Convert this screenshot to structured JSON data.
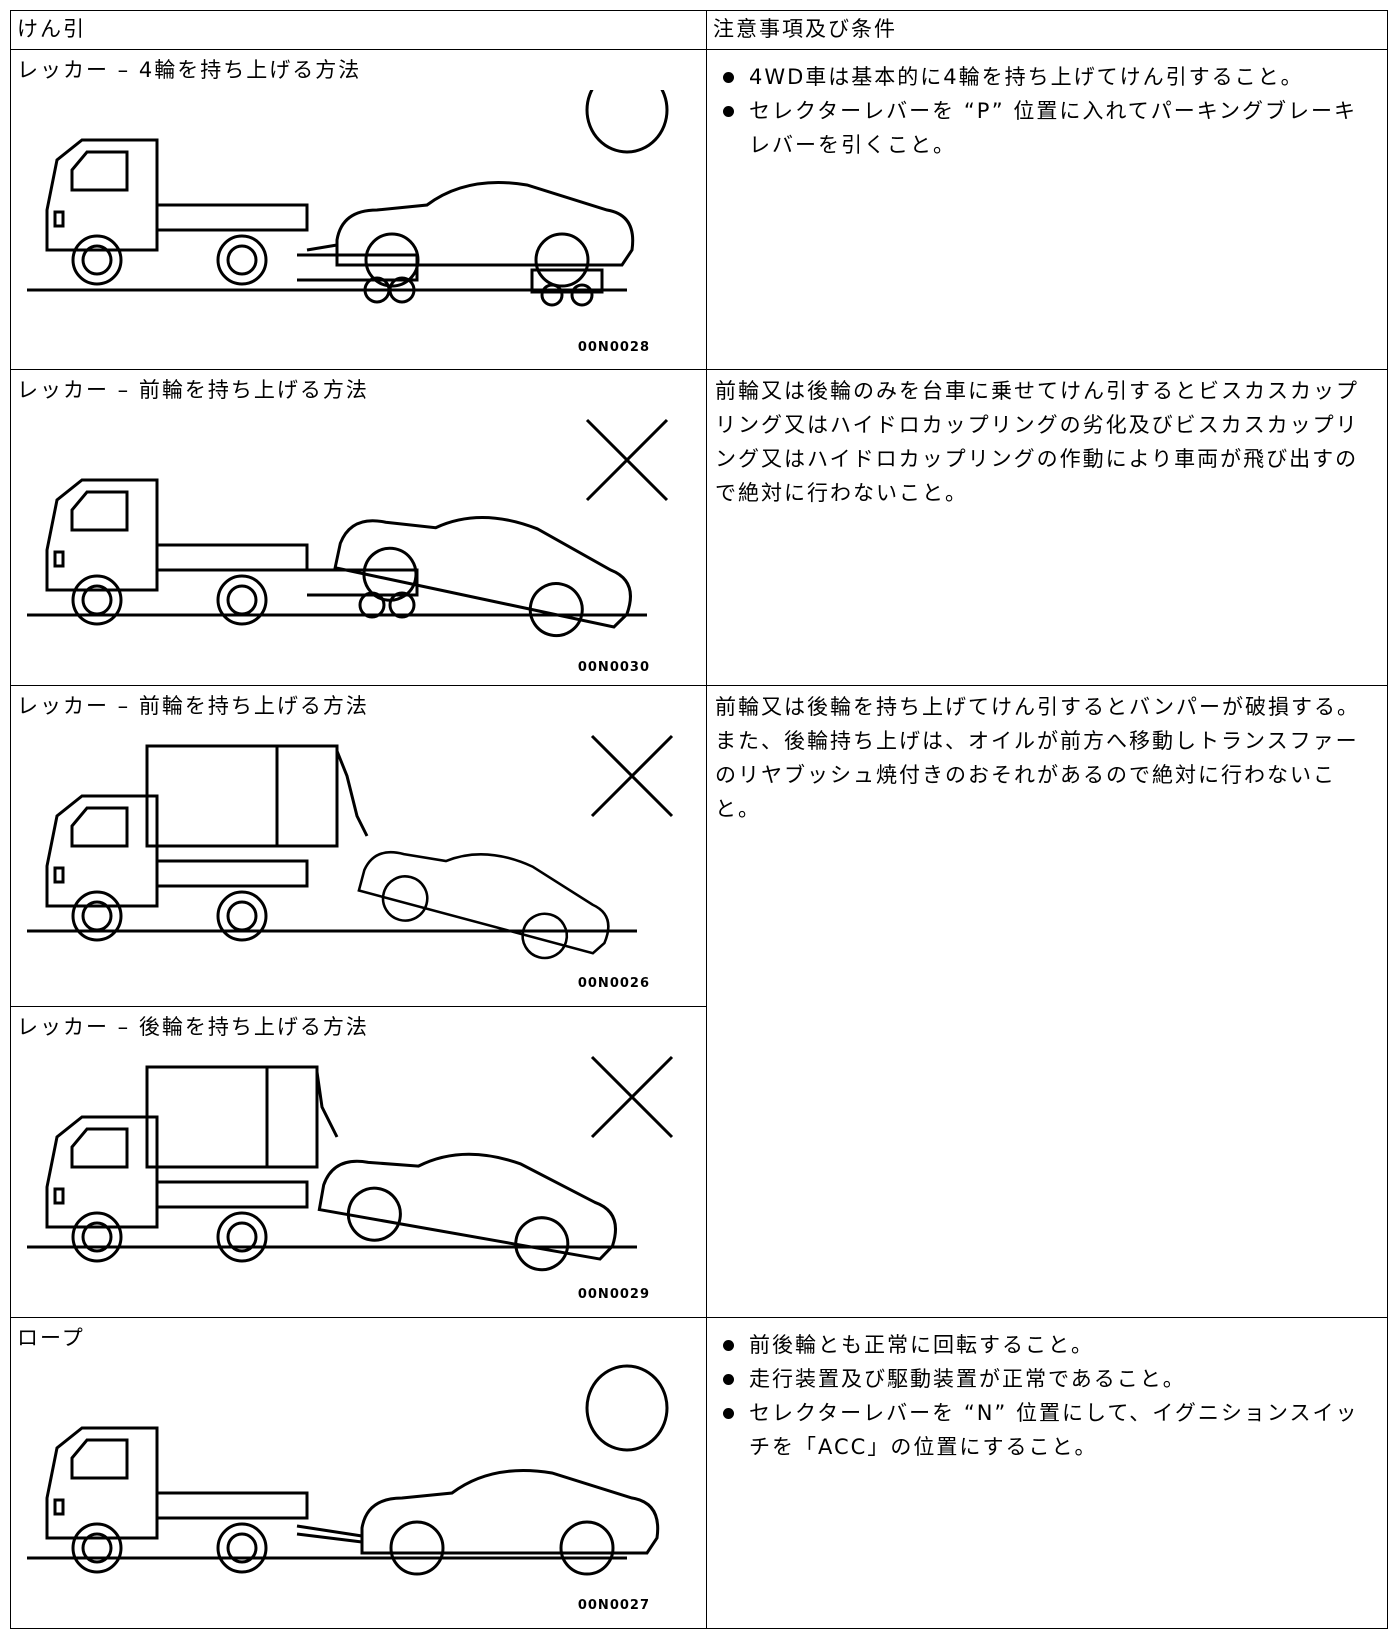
{
  "header": {
    "col1": "けん引",
    "col2": "注意事項及び条件"
  },
  "rows": [
    {
      "method": "レッカー – 4輪を持ち上げる方法",
      "figure": "00N0028",
      "bullets": [
        "4WD車は基本的に4輪を持ち上げてけん引すること。",
        "セレクターレバーを “P” 位置に入れてパーキングブレーキレバーを引くこと。"
      ]
    },
    {
      "method": "レッカー – 前輪を持ち上げる方法",
      "figure": "00N0030",
      "paragraphs": [
        "前輪又は後輪のみを台車に乗せてけん引するとビスカスカップリング又はハイドロカップリングの劣化及びビスカスカップリング又はハイドロカップリングの作動により車両が飛び出すので絶対に行わないこと。"
      ]
    },
    {
      "method": "レッカー – 前輪を持ち上げる方法",
      "figure": "00N0026",
      "paragraphs": [
        "前輪又は後輪を持ち上げてけん引するとバンパーが破損する。",
        "また、後輪持ち上げは、オイルが前方へ移動しトランスファーのリヤブッシュ焼付きのおそれがあるので絶対に行わないこと。"
      ]
    },
    {
      "method": "レッカー – 後輪を持ち上げる方法",
      "figure": "00N0029"
    },
    {
      "method": "ロープ",
      "figure": "00N0027",
      "bullets": [
        "前後輪とも正常に回転すること。",
        "走行装置及び駆動装置が正常であること。",
        "セレクターレバーを “N” 位置にして、イグニションスイッチを「ACC」の位置にすること。"
      ]
    }
  ]
}
